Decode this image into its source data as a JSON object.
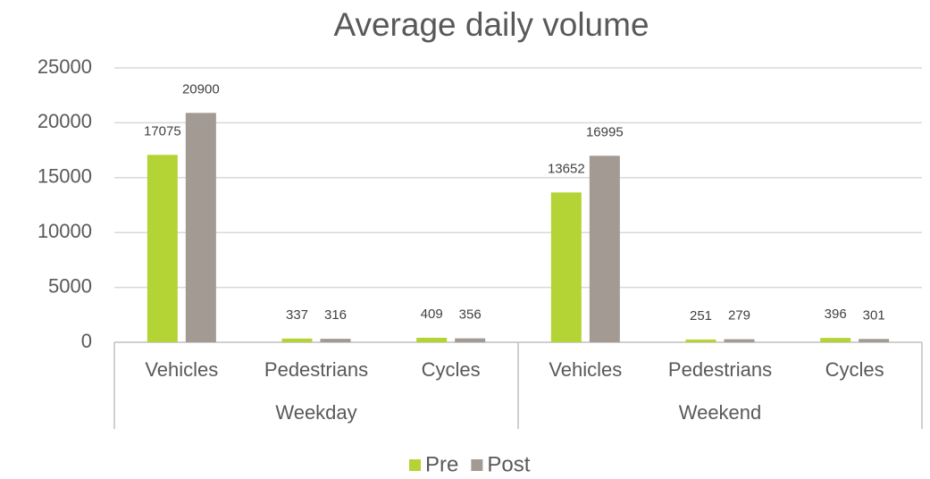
{
  "chart_data": {
    "type": "bar",
    "title": "Average daily volume",
    "categories": [
      "Vehicles",
      "Pedestrians",
      "Cycles",
      "Vehicles",
      "Pedestrians",
      "Cycles"
    ],
    "groups": [
      "Weekday",
      "Weekend"
    ],
    "series": [
      {
        "name": "Pre",
        "color": "#b4d334",
        "values": [
          17075,
          337,
          409,
          13652,
          251,
          396
        ]
      },
      {
        "name": "Post",
        "color": "#a29a93",
        "values": [
          20900,
          316,
          356,
          16995,
          279,
          301
        ]
      }
    ],
    "ylim": [
      0,
      25000
    ],
    "yticks": [
      0,
      5000,
      10000,
      15000,
      20000,
      25000
    ],
    "grid": true,
    "legend": "bottom"
  }
}
